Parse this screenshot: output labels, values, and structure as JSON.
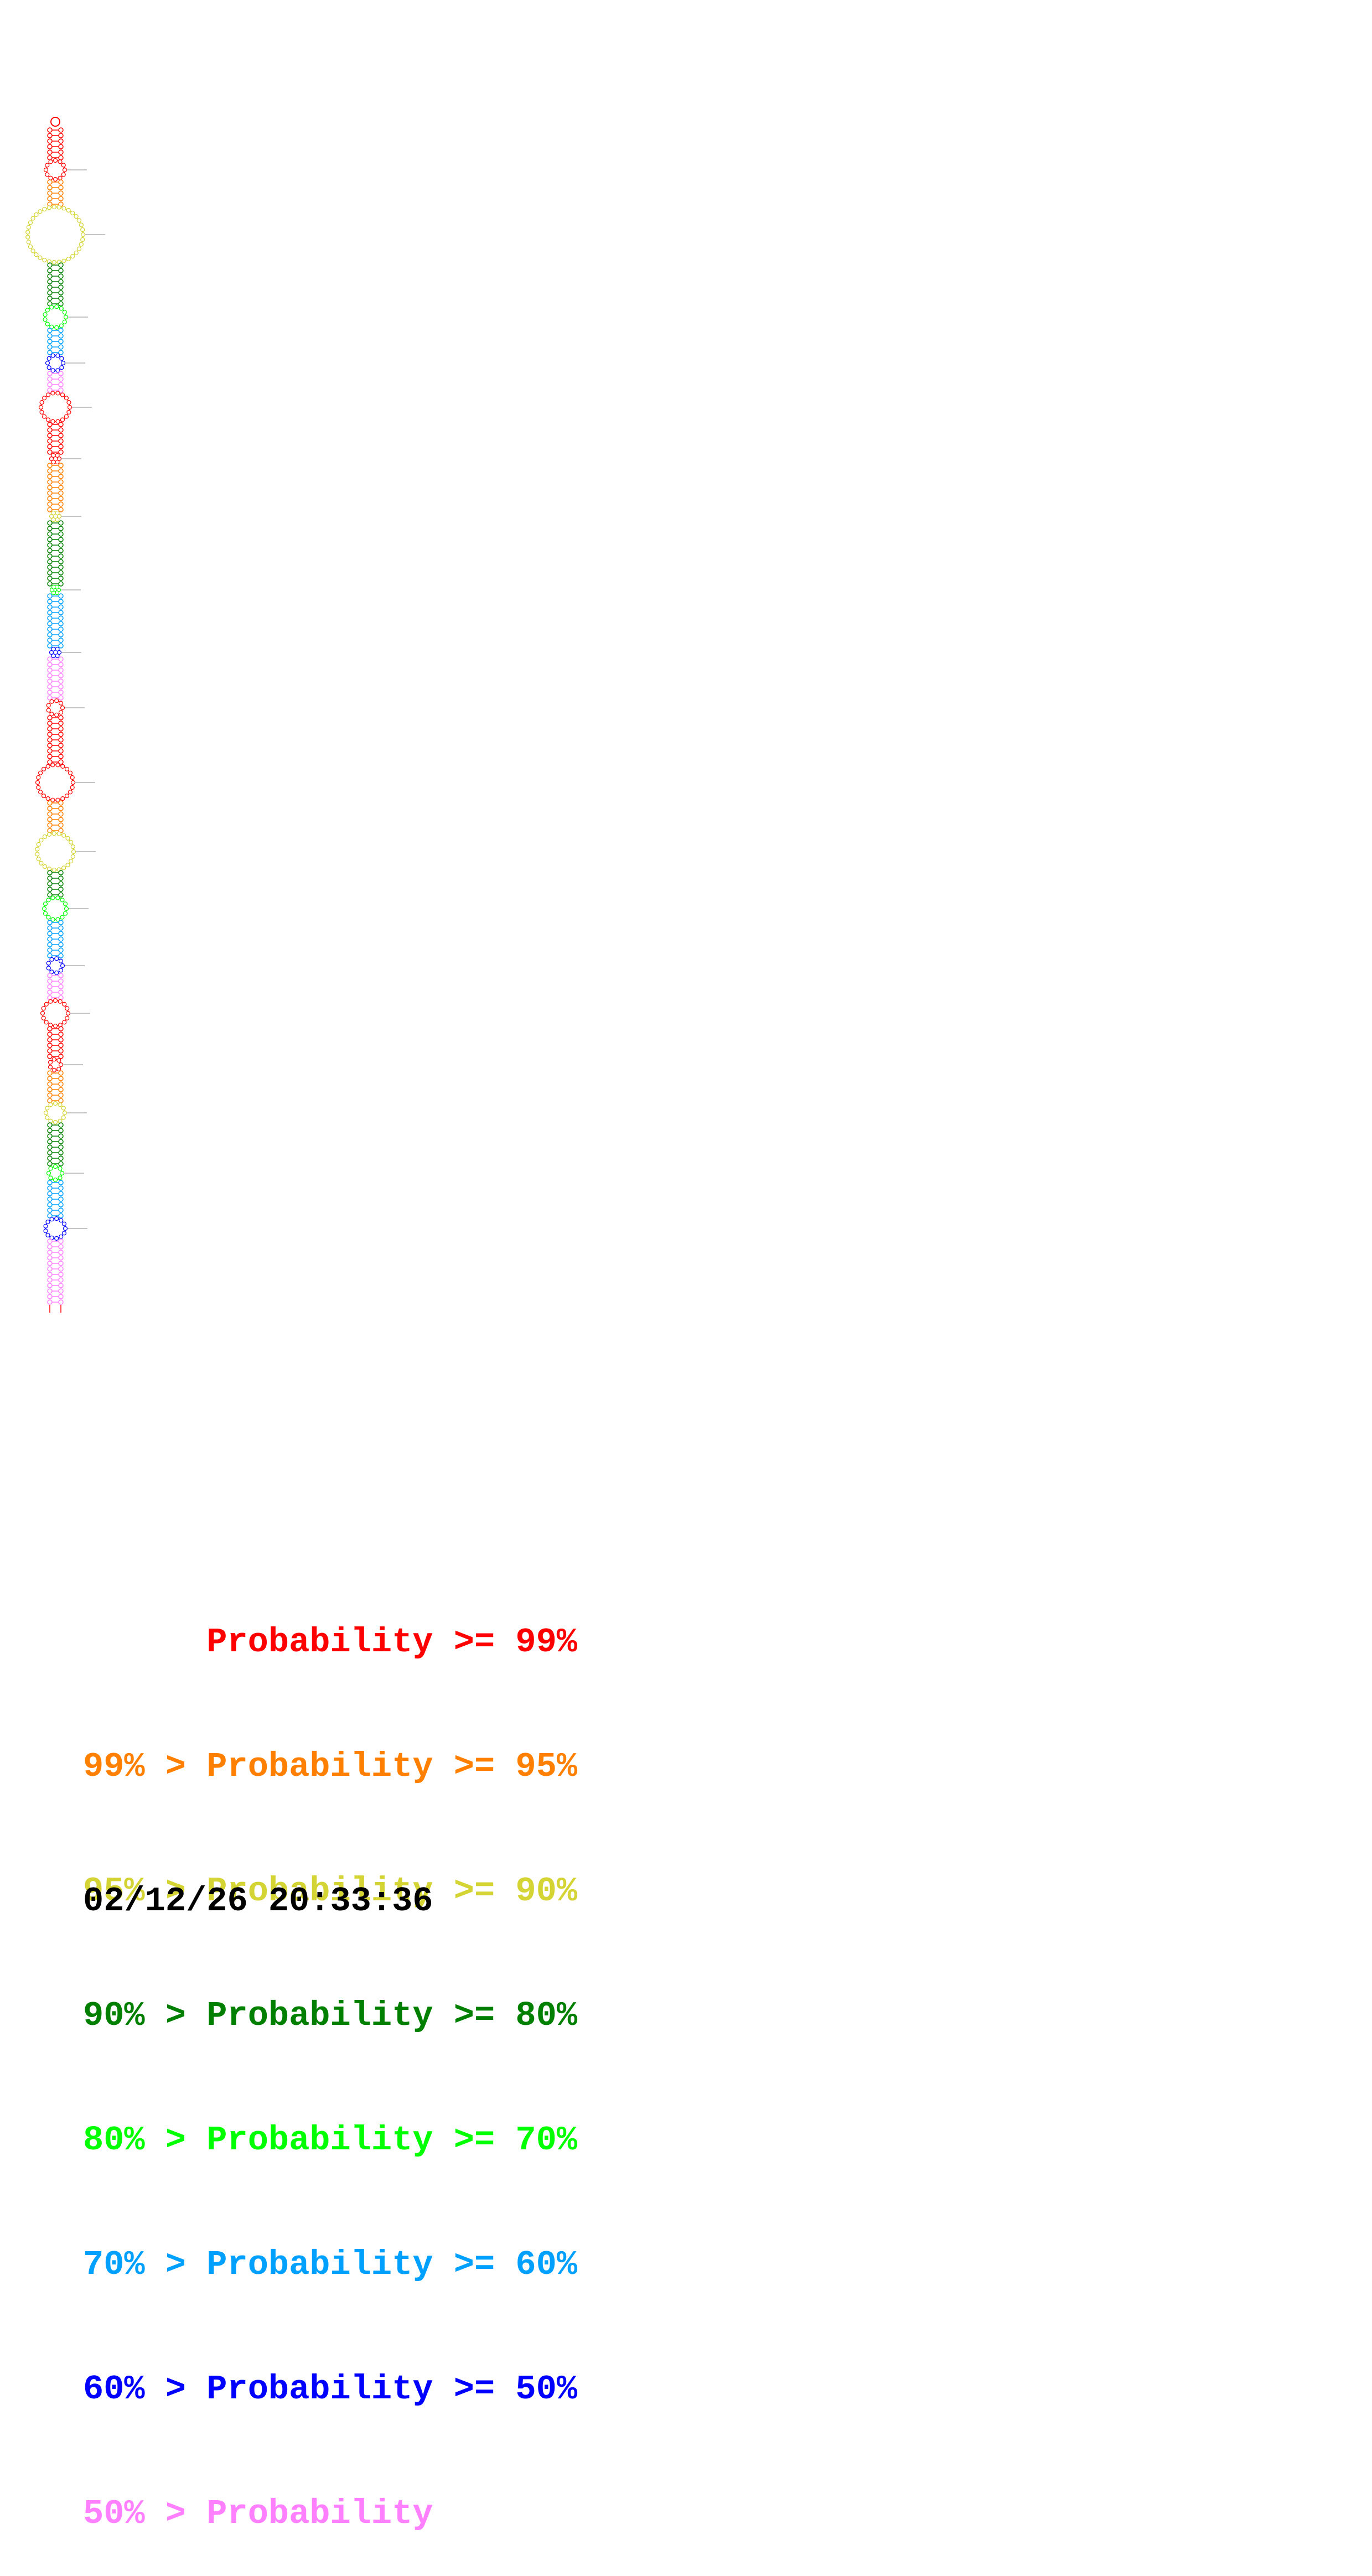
{
  "colors": {
    "p99": "#ff0000",
    "p95": "#ff8000",
    "p90": "#d4d434",
    "p80": "#007f00",
    "p70": "#00ff00",
    "p60": "#00a0ff",
    "p50": "#0000ff",
    "plt50": "#ff80ff"
  },
  "legend": [
    {
      "lower": "",
      "op1": "",
      "label": "Probability",
      "op2": ">=",
      "upper": "99%",
      "color": "#ff0000"
    },
    {
      "lower": "99%",
      "op1": ">",
      "label": "Probability",
      "op2": ">=",
      "upper": "95%",
      "color": "#ff8000"
    },
    {
      "lower": "95%",
      "op1": ">",
      "label": "Probability",
      "op2": ">=",
      "upper": "90%",
      "color": "#d4d434"
    },
    {
      "lower": "90%",
      "op1": ">",
      "label": "Probability",
      "op2": ">=",
      "upper": "80%",
      "color": "#007f00"
    },
    {
      "lower": "80%",
      "op1": ">",
      "label": "Probability",
      "op2": ">=",
      "upper": "70%",
      "color": "#00ff00"
    },
    {
      "lower": "70%",
      "op1": ">",
      "label": "Probability",
      "op2": ">=",
      "upper": "60%",
      "color": "#00a0ff"
    },
    {
      "lower": "60%",
      "op1": ">",
      "label": "Probability",
      "op2": ">=",
      "upper": "50%",
      "color": "#0000ff"
    },
    {
      "lower": "50%",
      "op1": ">",
      "label": "Probability",
      "op2": "",
      "upper": "",
      "color": "#ff80ff"
    }
  ],
  "timestamp": "02/12/26 20:33:36"
}
